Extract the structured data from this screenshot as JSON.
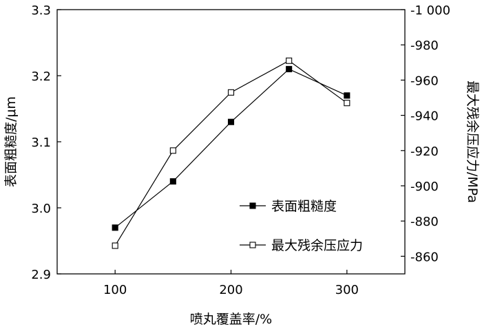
{
  "chart_data": {
    "type": "line",
    "x": [
      100,
      150,
      200,
      250,
      300
    ],
    "xlabel": "喷丸覆盖率/%",
    "xlim": [
      50,
      350
    ],
    "xticks": [
      100,
      200,
      300
    ],
    "y_left": {
      "label": "表面粗糙度/μm",
      "lim": [
        2.9,
        3.3
      ],
      "ticks": [
        2.9,
        3.0,
        3.1,
        3.2,
        3.3
      ],
      "tick_labels": [
        "2.9",
        "3.0",
        "3.1",
        "3.2",
        "3.3"
      ]
    },
    "y_right": {
      "label": "最大残余压应力/MPa",
      "lim": [
        -850,
        -1000
      ],
      "ticks": [
        -860,
        -880,
        -900,
        -920,
        -940,
        -960,
        -980,
        -1000
      ],
      "tick_labels": [
        "-860",
        "-880",
        "-900",
        "-920",
        "-940",
        "-960",
        "-980",
        "-1 000"
      ]
    },
    "series": [
      {
        "name": "表面粗糙度",
        "axis": "left",
        "marker": "filled-square",
        "values": [
          2.97,
          3.04,
          3.13,
          3.21,
          3.17
        ]
      },
      {
        "name": "最大残余压应力",
        "axis": "right",
        "marker": "open-square",
        "values": [
          -866,
          -920,
          -953,
          -971,
          -947
        ]
      }
    ],
    "legend_position": "bottom-right",
    "grid": false
  }
}
